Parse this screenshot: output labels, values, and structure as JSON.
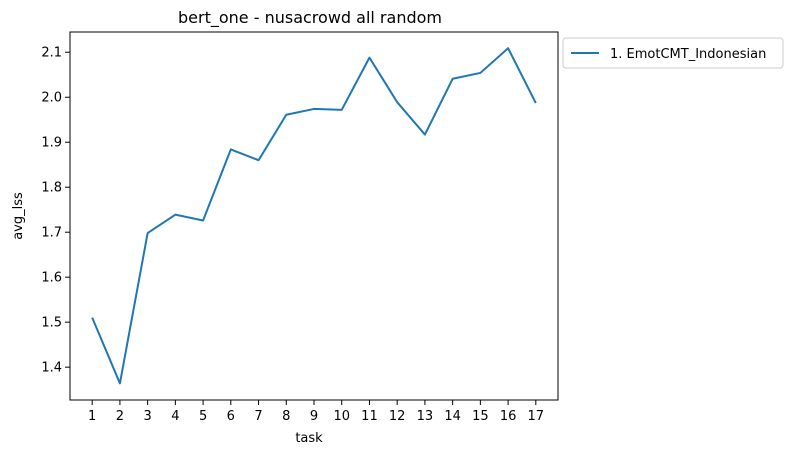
{
  "chart_data": {
    "type": "line",
    "title": "bert_one - nusacrowd all random",
    "xlabel": "task",
    "ylabel": "avg_lss",
    "x": [
      1,
      2,
      3,
      4,
      5,
      6,
      7,
      8,
      9,
      10,
      11,
      12,
      13,
      14,
      15,
      16,
      17
    ],
    "x_tick_labels": [
      "1",
      "2",
      "3",
      "4",
      "5",
      "6",
      "7",
      "8",
      "9",
      "10",
      "11",
      "12",
      "13",
      "14",
      "15",
      "16",
      "17"
    ],
    "y_ticks": [
      1.4,
      1.5,
      1.6,
      1.7,
      1.8,
      1.9,
      2.0,
      2.1
    ],
    "y_tick_labels": [
      "1.4",
      "1.5",
      "1.6",
      "1.7",
      "1.8",
      "1.9",
      "2.0",
      "2.1"
    ],
    "xlim": [
      0.2,
      17.8
    ],
    "ylim": [
      1.327,
      2.145
    ],
    "grid": false,
    "legend_position": "outside-right-top",
    "series": [
      {
        "name": "1. EmotCMT_Indonesian",
        "color": "#1f77b4",
        "values": [
          1.51,
          1.364,
          1.698,
          1.739,
          1.726,
          1.884,
          1.86,
          1.961,
          1.974,
          1.972,
          2.088,
          1.989,
          1.917,
          2.041,
          2.054,
          2.109,
          1.987
        ]
      }
    ]
  }
}
